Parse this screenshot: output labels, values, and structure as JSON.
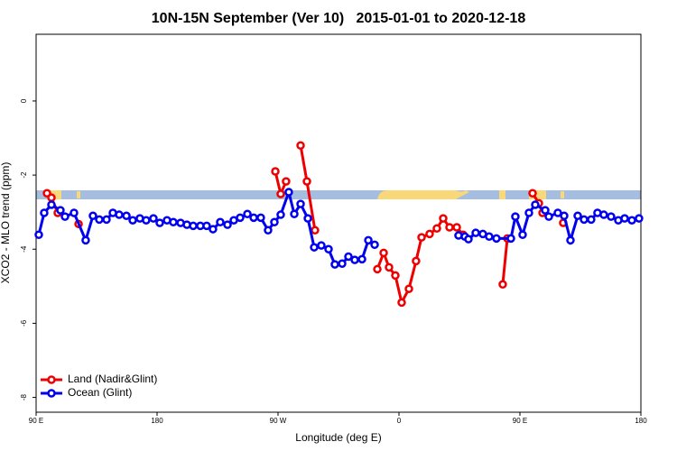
{
  "chart_data": {
    "type": "line",
    "title": "10N-15N September (Ver 10)   2015-01-01 to 2020-12-18",
    "x_label": "Longitude (deg E)",
    "y_label": "XCO2 - MLO trend (ppm)",
    "xlim": [
      90,
      540
    ],
    "xticks": [
      {
        "value": 90,
        "label": "90 E"
      },
      {
        "value": 180,
        "label": "180"
      },
      {
        "value": 270,
        "label": "90 W"
      },
      {
        "value": 360,
        "label": "0"
      },
      {
        "value": 450,
        "label": "90 E"
      },
      {
        "value": 540,
        "label": "180"
      }
    ],
    "ylim": [
      -8.4,
      1.8
    ],
    "yticks": [
      0,
      -2,
      -4,
      -6,
      -8
    ],
    "legend": "bottom-left",
    "series": [
      {
        "name": "Land (Nadir&Glint)",
        "color": "#ee0000",
        "x": [
          98.1,
          101.4,
          106.1,
          null,
          121.6,
          null,
          268.0,
          272.0,
          276.0,
          null,
          286.8,
          291.5,
          297.5,
          null,
          343.9,
          348.6,
          352.6,
          357.3,
          362.0,
          367.4,
          372.7,
          376.8,
          382.8,
          388.2,
          392.9,
          397.6,
          403.0,
          407.7,
          null,
          437.2,
          440.6,
          null,
          459.4,
          464.1,
          466.8,
          null,
          482.2
        ],
        "values": [
          -2.49,
          -2.61,
          -3.02,
          null,
          -3.32,
          null,
          -1.9,
          -2.51,
          -2.17,
          null,
          -1.2,
          -2.17,
          -3.49,
          null,
          -4.54,
          -4.1,
          -4.49,
          -4.71,
          -5.44,
          -5.07,
          -4.32,
          -3.68,
          -3.59,
          -3.44,
          -3.17,
          -3.41,
          -3.41,
          -3.61,
          null,
          -4.95,
          -3.71,
          null,
          -2.49,
          -2.76,
          -3.02,
          null,
          -3.29
        ]
      },
      {
        "name": "Ocean (Glint)",
        "color": "#0000ee",
        "x": [
          92.0,
          96.0,
          101.4,
          108.1,
          111.5,
          118.2,
          126.9,
          132.3,
          137.0,
          142.4,
          147.1,
          151.8,
          157.2,
          161.9,
          167.2,
          171.9,
          177.3,
          182.0,
          187.4,
          192.1,
          197.5,
          202.2,
          206.9,
          212.2,
          216.9,
          221.6,
          227.0,
          232.4,
          237.1,
          241.8,
          247.2,
          251.9,
          257.2,
          262.6,
          267.3,
          272.0,
          278.0,
          282.1,
          286.8,
          292.2,
          296.9,
          302.2,
          307.6,
          312.3,
          317.7,
          322.4,
          327.1,
          332.5,
          337.2,
          341.9,
          null,
          404.3,
          409.0,
          411.7,
          417.1,
          422.4,
          427.1,
          432.5,
          443.3,
          446.6,
          452.0,
          456.7,
          461.4,
          468.8,
          471.5,
          478.2,
          482.9,
          487.6,
          493.0,
          497.7,
          503.0,
          507.7,
          512.4,
          517.8,
          523.2,
          527.9,
          533.3,
          538.6
        ],
        "values": [
          -3.61,
          -3.02,
          -2.8,
          -2.95,
          -3.12,
          -3.02,
          -3.76,
          -3.1,
          -3.2,
          -3.2,
          -3.02,
          -3.07,
          -3.1,
          -3.22,
          -3.17,
          -3.22,
          -3.17,
          -3.29,
          -3.22,
          -3.27,
          -3.29,
          -3.34,
          -3.37,
          -3.37,
          -3.37,
          -3.46,
          -3.27,
          -3.34,
          -3.22,
          -3.15,
          -3.05,
          -3.15,
          -3.15,
          -3.49,
          -3.27,
          -3.07,
          -2.46,
          -3.05,
          -2.78,
          -3.17,
          -3.95,
          -3.9,
          -4.0,
          -4.41,
          -4.39,
          -4.2,
          -4.29,
          -4.27,
          -3.76,
          -3.88,
          null,
          -3.63,
          -3.66,
          -3.73,
          -3.56,
          -3.59,
          -3.66,
          -3.71,
          -3.71,
          -3.12,
          -3.61,
          -3.02,
          -2.8,
          -2.95,
          -3.12,
          -3.02,
          -3.1,
          -3.76,
          -3.1,
          -3.2,
          -3.2,
          -3.02,
          -3.07,
          -3.12,
          -3.22,
          -3.17,
          -3.22,
          -3.17
        ]
      }
    ]
  }
}
